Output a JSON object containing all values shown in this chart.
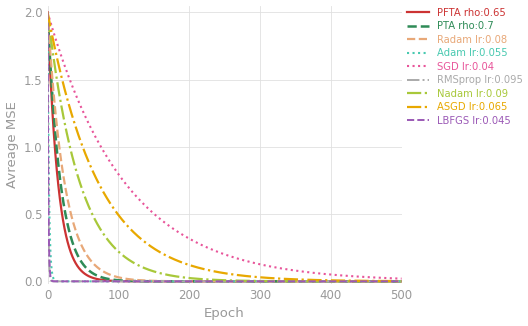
{
  "xlabel": "Epoch",
  "ylabel": "Avreage MSE",
  "xlim": [
    0,
    500
  ],
  "ylim": [
    -0.02,
    2.05
  ],
  "yticks": [
    0,
    0.5,
    1.0,
    1.5,
    2.0
  ],
  "xticks": [
    0,
    100,
    200,
    300,
    400,
    500
  ],
  "epochs": 500,
  "curve_params": [
    {
      "label": "PFTA rho:0.65",
      "color": "#cc3333",
      "linestyle": "solid",
      "linewidth": 1.6,
      "decay": 0.068
    },
    {
      "label": "PTA rho:0.7",
      "color": "#2e8b57",
      "linestyle": "dashed",
      "linewidth": 1.8,
      "decay": 0.055
    },
    {
      "label": "Radam lr:0.08",
      "color": "#e8a878",
      "linestyle": "dashed",
      "linewidth": 1.6,
      "decay": 0.042
    },
    {
      "label": "Adam lr:0.055",
      "color": "#48c9b0",
      "linestyle": "dotted",
      "linewidth": 1.5,
      "decay": 0.55
    },
    {
      "label": "SGD lr:0.04",
      "color": "#e8559a",
      "linestyle": "dotted",
      "linewidth": 1.5,
      "decay": 0.0092
    },
    {
      "label": "RMSprop lr:0.095",
      "color": "#aaaaaa",
      "linestyle": "dashdot",
      "linewidth": 1.4,
      "decay": 1.2
    },
    {
      "label": "Nadam lr:0.09",
      "color": "#a8c83a",
      "linestyle": "dashdot",
      "linewidth": 1.6,
      "decay": 0.022
    },
    {
      "label": "ASGD lr:0.065",
      "color": "#e8a800",
      "linestyle": "dashdot",
      "linewidth": 1.6,
      "decay": 0.014
    },
    {
      "label": "LBFGS lr:0.045",
      "color": "#9b59b6",
      "linestyle": "dashed",
      "linewidth": 1.4,
      "decay": 1.0
    }
  ],
  "grid_color": "#e0e0e0",
  "tick_color": "#999999",
  "label_color": "#999999",
  "figsize": [
    5.28,
    3.26
  ],
  "dpi": 100
}
